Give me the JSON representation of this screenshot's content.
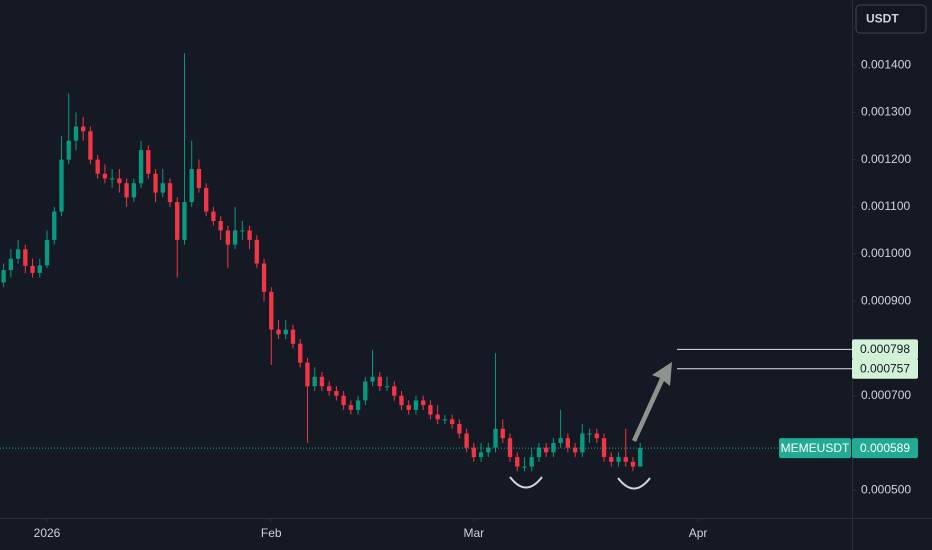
{
  "chart_data": {
    "type": "candlestick",
    "quote_currency": "USDT",
    "symbol": "MEMEUSDT",
    "last_price": 0.000589,
    "targets": [
      0.000798,
      0.000757
    ],
    "up_color": "#089981",
    "down_color": "#f23645",
    "target_color": "#d1f2d6",
    "last_color": "#22ab94",
    "ylim": [
      0.000441,
      0.001538
    ],
    "yticks": [
      {
        "value": 0.0005,
        "label": "0.000500"
      },
      {
        "value": 0.0007,
        "label": "0.000700"
      },
      {
        "value": 0.0009,
        "label": "0.000900"
      },
      {
        "value": 0.001,
        "label": "0.001000"
      },
      {
        "value": 0.0011,
        "label": "0.001100"
      },
      {
        "value": 0.0012,
        "label": "0.001200"
      },
      {
        "value": 0.0013,
        "label": "0.001300"
      },
      {
        "value": 0.0014,
        "label": "0.001400"
      }
    ],
    "xlim": [
      -0.5,
      117
    ],
    "xticks": [
      {
        "value": 6,
        "label": "2026"
      },
      {
        "value": 37,
        "label": "Feb"
      },
      {
        "value": 65,
        "label": "Mar"
      },
      {
        "value": 96,
        "label": "Apr"
      }
    ],
    "candles": [
      [
        0.00094,
        0.00098,
        0.00093,
        0.000966
      ],
      [
        0.000966,
        0.00101,
        0.00095,
        0.00099
      ],
      [
        0.00099,
        0.00103,
        0.00098,
        0.00101
      ],
      [
        0.00101,
        0.00102,
        0.00096,
        0.000975
      ],
      [
        0.000975,
        0.00099,
        0.00095,
        0.00096
      ],
      [
        0.00096,
        0.00099,
        0.00095,
        0.000976
      ],
      [
        0.000976,
        0.00105,
        0.00097,
        0.00103
      ],
      [
        0.00103,
        0.0011,
        0.00102,
        0.00109
      ],
      [
        0.00109,
        0.00125,
        0.00108,
        0.0012
      ],
      [
        0.0012,
        0.00134,
        0.00119,
        0.00124
      ],
      [
        0.00124,
        0.0013,
        0.00122,
        0.00127
      ],
      [
        0.00127,
        0.00129,
        0.00124,
        0.00126
      ],
      [
        0.00126,
        0.00127,
        0.00119,
        0.0012
      ],
      [
        0.0012,
        0.00121,
        0.00116,
        0.00117
      ],
      [
        0.00117,
        0.00119,
        0.00115,
        0.00116
      ],
      [
        0.00116,
        0.00118,
        0.00114,
        0.00116
      ],
      [
        0.00116,
        0.00118,
        0.00113,
        0.00115
      ],
      [
        0.00115,
        0.00116,
        0.0011,
        0.00112
      ],
      [
        0.00112,
        0.00116,
        0.00111,
        0.00115
      ],
      [
        0.00115,
        0.00124,
        0.00114,
        0.00122
      ],
      [
        0.00122,
        0.00123,
        0.00116,
        0.00117
      ],
      [
        0.00117,
        0.00118,
        0.00111,
        0.00113
      ],
      [
        0.00113,
        0.00118,
        0.00112,
        0.00115
      ],
      [
        0.00115,
        0.00116,
        0.0011,
        0.00111
      ],
      [
        0.00111,
        0.00112,
        0.00095,
        0.00103
      ],
      [
        0.00103,
        0.001425,
        0.00102,
        0.00111
      ],
      [
        0.00111,
        0.00124,
        0.0011,
        0.00118
      ],
      [
        0.00118,
        0.0012,
        0.00113,
        0.00114
      ],
      [
        0.00114,
        0.00115,
        0.00108,
        0.00109
      ],
      [
        0.00109,
        0.0011,
        0.00106,
        0.00107
      ],
      [
        0.00107,
        0.00108,
        0.00103,
        0.00105
      ],
      [
        0.00105,
        0.00106,
        0.00097,
        0.00102
      ],
      [
        0.00102,
        0.0011,
        0.00101,
        0.00105
      ],
      [
        0.00105,
        0.00107,
        0.00103,
        0.00105
      ],
      [
        0.00105,
        0.00106,
        0.00101,
        0.00103
      ],
      [
        0.00103,
        0.00104,
        0.00097,
        0.00098
      ],
      [
        0.00098,
        0.00099,
        0.0009,
        0.00092
      ],
      [
        0.00092,
        0.00093,
        0.000765,
        0.00084
      ],
      [
        0.00084,
        0.00086,
        0.00082,
        0.00083
      ],
      [
        0.00083,
        0.00086,
        0.00082,
        0.00084
      ],
      [
        0.00084,
        0.00085,
        0.0008,
        0.00081
      ],
      [
        0.00081,
        0.00082,
        0.00076,
        0.00077
      ],
      [
        0.00077,
        0.00078,
        0.0006,
        0.00072
      ],
      [
        0.00072,
        0.00076,
        0.00071,
        0.00074
      ],
      [
        0.00074,
        0.00075,
        0.00071,
        0.00072
      ],
      [
        0.00072,
        0.00073,
        0.0007,
        0.00071
      ],
      [
        0.00071,
        0.00072,
        0.00069,
        0.0007
      ],
      [
        0.0007,
        0.00071,
        0.00067,
        0.00068
      ],
      [
        0.00068,
        0.00069,
        0.00066,
        0.00067
      ],
      [
        0.00067,
        0.0007,
        0.00066,
        0.00069
      ],
      [
        0.00069,
        0.00074,
        0.00068,
        0.00073
      ],
      [
        0.00073,
        0.000797,
        0.00072,
        0.00074
      ],
      [
        0.00074,
        0.00075,
        0.00071,
        0.00072
      ],
      [
        0.00072,
        0.00074,
        0.00071,
        0.00072
      ],
      [
        0.00072,
        0.00073,
        0.00069,
        0.0007
      ],
      [
        0.0007,
        0.00071,
        0.00067,
        0.00068
      ],
      [
        0.00068,
        0.00069,
        0.00066,
        0.00067
      ],
      [
        0.00067,
        0.0007,
        0.00066,
        0.00069
      ],
      [
        0.00069,
        0.0007,
        0.00067,
        0.00068
      ],
      [
        0.00068,
        0.00069,
        0.00065,
        0.00066
      ],
      [
        0.00066,
        0.00068,
        0.00064,
        0.00065
      ],
      [
        0.00065,
        0.00066,
        0.00064,
        0.00065
      ],
      [
        0.00065,
        0.00066,
        0.00063,
        0.00064
      ],
      [
        0.00064,
        0.00065,
        0.00061,
        0.00062
      ],
      [
        0.00062,
        0.00063,
        0.00058,
        0.00059
      ],
      [
        0.00059,
        0.0006,
        0.00056,
        0.00057
      ],
      [
        0.00057,
        0.0006,
        0.00056,
        0.00058
      ],
      [
        0.00058,
        0.0006,
        0.00057,
        0.00059
      ],
      [
        0.00059,
        0.00079,
        0.00058,
        0.00063
      ],
      [
        0.00063,
        0.00065,
        0.0006,
        0.00061
      ],
      [
        0.00061,
        0.00062,
        0.00056,
        0.00057
      ],
      [
        0.00057,
        0.00058,
        0.00054,
        0.00055
      ],
      [
        0.00055,
        0.00057,
        0.00054,
        0.00055
      ],
      [
        0.00055,
        0.00059,
        0.00054,
        0.00057
      ],
      [
        0.00057,
        0.0006,
        0.00056,
        0.00059
      ],
      [
        0.00059,
        0.0006,
        0.00057,
        0.00058
      ],
      [
        0.00058,
        0.00061,
        0.00057,
        0.0006
      ],
      [
        0.0006,
        0.00067,
        0.00059,
        0.00061
      ],
      [
        0.00061,
        0.00062,
        0.00058,
        0.00059
      ],
      [
        0.00059,
        0.0006,
        0.00057,
        0.00058
      ],
      [
        0.00058,
        0.00064,
        0.00057,
        0.00062
      ],
      [
        0.00062,
        0.00063,
        0.0006,
        0.00062
      ],
      [
        0.00062,
        0.00063,
        0.0006,
        0.00061
      ],
      [
        0.00061,
        0.00062,
        0.00056,
        0.00057
      ],
      [
        0.00057,
        0.00058,
        0.00055,
        0.00056
      ],
      [
        0.00056,
        0.00058,
        0.00055,
        0.00057
      ],
      [
        0.00057,
        0.00063,
        0.00055,
        0.00056
      ],
      [
        0.00056,
        0.00057,
        0.00054,
        0.00055
      ],
      [
        0.00055,
        0.0006,
        0.00055,
        0.000589
      ]
    ]
  }
}
